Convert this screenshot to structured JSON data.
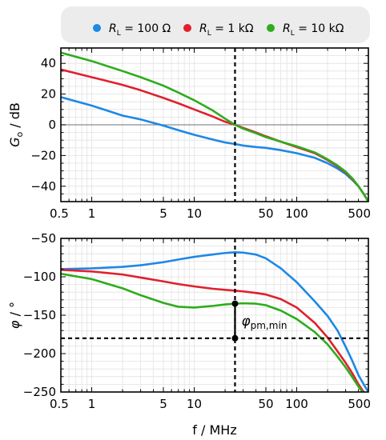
{
  "legend": {
    "items": [
      {
        "symbol": "R",
        "sub": "L",
        "value": " = 100 Ω",
        "color": "#1e88e5"
      },
      {
        "symbol": "R",
        "sub": "L",
        "value": " = 1 kΩ",
        "color": "#e0202e"
      },
      {
        "symbol": "R",
        "sub": "L",
        "value": " = 10 kΩ",
        "color": "#2eac1c"
      }
    ]
  },
  "chart_data": [
    {
      "type": "line",
      "ylabel_symbol": "G",
      "ylabel_sub": "o",
      "ylabel_unit": " / dB",
      "xscale": "log",
      "xlim": [
        0.5,
        500
      ],
      "ylim": [
        -50,
        50
      ],
      "yticks": [
        40,
        20,
        0,
        -20,
        -40
      ],
      "xticks": [
        0.5,
        1,
        5,
        10,
        50,
        100,
        500
      ],
      "xtick_labels": [
        "0.5",
        "1",
        "5",
        "10",
        "50",
        "100",
        "500"
      ],
      "grid": true,
      "reference_lines": {
        "horizontal": 0,
        "vertical": 25
      },
      "series": [
        {
          "name": "RL = 100 Ω",
          "color": "#1e88e5",
          "x": [
            0.5,
            1,
            2,
            3,
            5,
            7,
            10,
            15,
            20,
            25,
            30,
            40,
            50,
            70,
            100,
            150,
            200,
            250,
            300,
            350,
            400,
            450,
            500
          ],
          "y": [
            18,
            12.5,
            6,
            3.5,
            -0.5,
            -3.5,
            -6.5,
            -9.5,
            -11.5,
            -12.5,
            -13.5,
            -14.5,
            -15,
            -16.5,
            -18.5,
            -21.5,
            -25,
            -28.5,
            -32,
            -36,
            -40,
            -45,
            -50
          ]
        },
        {
          "name": "RL = 1 kΩ",
          "color": "#e0202e",
          "x": [
            0.5,
            1,
            2,
            3,
            5,
            7,
            10,
            15,
            20,
            25,
            30,
            40,
            50,
            70,
            100,
            150,
            200,
            250,
            300,
            350,
            400,
            450,
            500
          ],
          "y": [
            36,
            31,
            26,
            22.5,
            17.5,
            14,
            10,
            5.5,
            2,
            0,
            -2,
            -5,
            -7.5,
            -11,
            -14.5,
            -18.5,
            -23,
            -27,
            -31,
            -35.5,
            -40,
            -45,
            -50
          ]
        },
        {
          "name": "RL = 10 kΩ",
          "color": "#2eac1c",
          "x": [
            0.5,
            1,
            2,
            3,
            5,
            7,
            10,
            15,
            20,
            25,
            30,
            40,
            50,
            70,
            100,
            150,
            200,
            250,
            300,
            350,
            400,
            450,
            500
          ],
          "y": [
            47,
            41.5,
            35,
            31,
            25.5,
            21,
            16,
            9.5,
            4,
            0,
            -2.5,
            -5.5,
            -8,
            -11,
            -14,
            -18,
            -22.5,
            -26.5,
            -30.5,
            -35,
            -40,
            -45,
            -50
          ]
        }
      ]
    },
    {
      "type": "line",
      "ylabel_symbol": "φ",
      "ylabel_unit": " / °",
      "xlabel": "f / MHz",
      "xscale": "log",
      "xlim": [
        0.5,
        500
      ],
      "ylim": [
        -250,
        -50
      ],
      "yticks": [
        -50,
        -100,
        -150,
        -200,
        -250
      ],
      "xticks": [
        0.5,
        1,
        5,
        10,
        50,
        100,
        500
      ],
      "xtick_labels": [
        "0.5",
        "1",
        "5",
        "10",
        "50",
        "100",
        "500"
      ],
      "grid": true,
      "reference_lines": {
        "horizontal": -180,
        "vertical": 25
      },
      "annotation": {
        "symbol": "φ",
        "sub": "pm,min",
        "x": 25,
        "y_from": -135,
        "y_to": -180
      },
      "series": [
        {
          "name": "RL = 100 Ω",
          "color": "#1e88e5",
          "x": [
            0.5,
            1,
            2,
            3,
            5,
            7,
            10,
            15,
            20,
            25,
            30,
            40,
            50,
            70,
            100,
            150,
            200,
            250,
            300,
            350,
            400,
            450,
            500
          ],
          "y": [
            -90,
            -89,
            -87,
            -85,
            -81,
            -77.5,
            -74,
            -71,
            -69,
            -68,
            -68.5,
            -71,
            -76,
            -89,
            -107,
            -132,
            -151,
            -170,
            -191,
            -210,
            -228,
            -240,
            -250
          ]
        },
        {
          "name": "RL = 1 kΩ",
          "color": "#e0202e",
          "x": [
            0.5,
            1,
            2,
            3,
            5,
            7,
            10,
            15,
            20,
            25,
            30,
            40,
            50,
            70,
            100,
            150,
            200,
            250,
            300,
            350,
            400,
            450,
            500
          ],
          "y": [
            -91,
            -93,
            -97,
            -101,
            -106,
            -109.5,
            -112.5,
            -115.5,
            -117,
            -118,
            -119,
            -121,
            -123,
            -129,
            -140,
            -160,
            -179,
            -197,
            -212,
            -226,
            -240,
            -250,
            -256
          ]
        },
        {
          "name": "RL = 10 kΩ",
          "color": "#2eac1c",
          "x": [
            0.5,
            1,
            2,
            3,
            5,
            7,
            10,
            15,
            20,
            25,
            30,
            40,
            50,
            70,
            100,
            150,
            200,
            250,
            300,
            350,
            400,
            450,
            500
          ],
          "y": [
            -96,
            -103,
            -115,
            -124,
            -134,
            -139,
            -140,
            -138,
            -136,
            -135,
            -134.5,
            -135,
            -137,
            -144,
            -155,
            -172,
            -188,
            -204,
            -218,
            -231,
            -243,
            -252,
            -258
          ]
        }
      ]
    }
  ]
}
